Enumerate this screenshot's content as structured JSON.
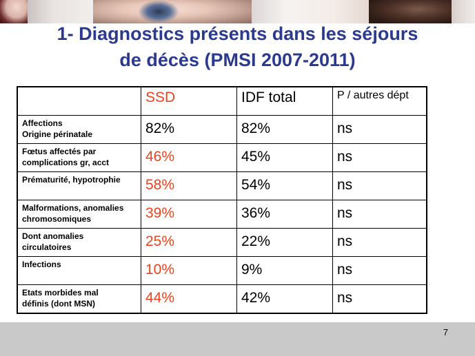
{
  "slide": {
    "title_line1": "1- Diagnostics présents dans les séjours",
    "title_line2": "de décès (PMSI 2007-2011)",
    "page_number": "7"
  },
  "table": {
    "headers": [
      "",
      "SSD",
      "IDF total",
      "P / autres dépt"
    ],
    "rows": [
      {
        "label_line1": "Affections",
        "label_line2": "Origine périnatale",
        "ssd": "82%",
        "idf": "82%",
        "p": "ns",
        "ssd_color": "#000000"
      },
      {
        "label_line1": "Fœtus affectés par",
        "label_line2": "complications gr, acct",
        "ssd": "46%",
        "idf": "45%",
        "p": "ns",
        "ssd_color": "#e8431f"
      },
      {
        "label_line1": "Prématurité, hypotrophie",
        "label_line2": "",
        "ssd": "58%",
        "idf": "54%",
        "p": "ns",
        "ssd_color": "#e8431f"
      },
      {
        "label_line1": "Malformations, anomalies",
        "label_line2": "chromosomiques",
        "ssd": "39%",
        "idf": "36%",
        "p": "ns",
        "ssd_color": "#e8431f"
      },
      {
        "label_line1": "Dont anomalies",
        "label_line2": "circulatoires",
        "ssd": "25%",
        "idf": "22%",
        "p": "ns",
        "ssd_color": "#e8431f"
      },
      {
        "label_line1": "Infections",
        "label_line2": "",
        "ssd": "10%",
        "idf": "9%",
        "p": "ns",
        "ssd_color": "#e8431f"
      },
      {
        "label_line1": "Etats morbides mal",
        "label_line2": "définis (dont MSN)",
        "ssd": "44%",
        "idf": "42%",
        "p": "ns",
        "ssd_color": "#e8431f"
      }
    ]
  },
  "colors": {
    "title": "#2b3a8f",
    "ssd_accent": "#e8431f",
    "footer_band": "#c9c9c9"
  }
}
